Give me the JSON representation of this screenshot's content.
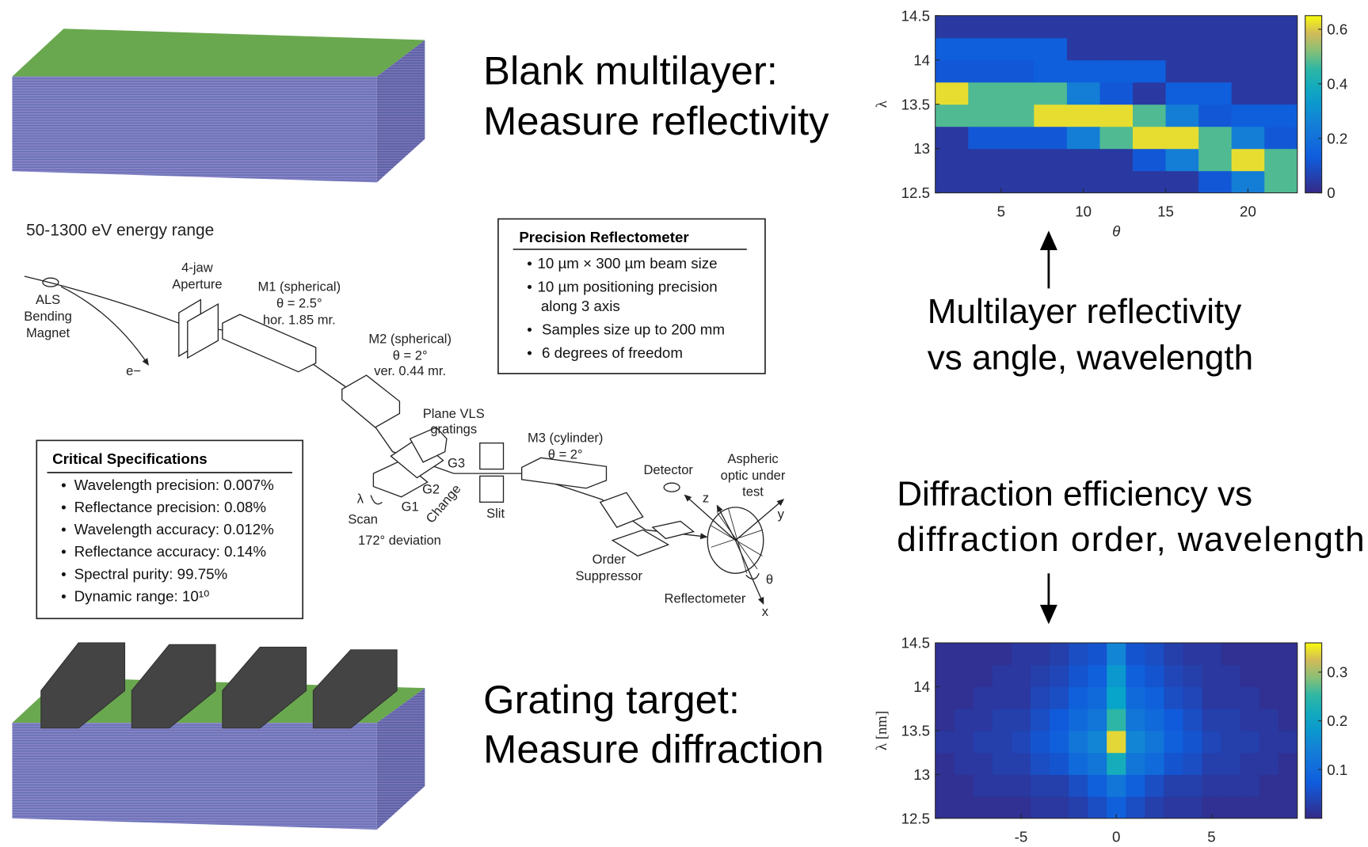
{
  "captions": {
    "blank": [
      "Blank multilayer:",
      "Measure reflectivity"
    ],
    "grating": [
      "Grating target:",
      "Measure diffraction"
    ],
    "reflectivity": [
      "Multilayer reflectivity",
      "vs angle, wavelength"
    ],
    "diffraction": [
      "Diffraction efficiency vs",
      "diffraction order, wavelength"
    ]
  },
  "beamline": {
    "energy_range": "50-1300 eV energy range",
    "labels": [
      "ALS",
      "Bending",
      "Magnet",
      "e−",
      "4-jaw",
      "Aperture",
      "M1 (spherical)",
      "θ = 2.5°",
      "hor. 1.85 mr.",
      "M2 (spherical)",
      "θ = 2°",
      "ver. 0.44 mr.",
      "Plane VLS",
      "gratings",
      "G3",
      "G2",
      "G1",
      "λ",
      "Scan",
      "Change",
      "Slit",
      "172° deviation",
      "M3 (cylinder)",
      "θ = 2°",
      "Detector",
      "Aspheric",
      "optic under",
      "test",
      "z",
      "y",
      "Order",
      "Suppressor",
      "θ",
      "Reflectometer",
      "x"
    ]
  },
  "precision_box": {
    "title": "Precision Reflectometer",
    "items": [
      "10 µm × 300 µm beam size",
      [
        "10 µm positioning precision",
        "along 3 axis"
      ],
      "Samples size up to 200 mm",
      "6 degrees of freedom"
    ]
  },
  "specs_box": {
    "title": "Critical Specifications",
    "items": [
      "Wavelength precision: 0.007%",
      "Reflectance precision: 0.08%",
      "Wavelength accuracy: 0.012%",
      "Reflectance accuracy: 0.14%",
      "Spectral purity: 99.75%",
      "Dynamic range: 10¹⁰"
    ]
  },
  "chart_data": [
    {
      "type": "heatmap",
      "xlabel": "θ",
      "ylabel": "λ",
      "x": [
        2,
        4,
        6,
        8,
        10,
        12,
        14,
        16,
        18,
        20,
        22
      ],
      "y": [
        12.625,
        12.875,
        13.125,
        13.375,
        13.625,
        13.875,
        14.125,
        14.375
      ],
      "z": [
        [
          0.04,
          0.04,
          0.04,
          0.04,
          0.04,
          0.04,
          0.04,
          0.04,
          0.12,
          0.25,
          0.48
        ],
        [
          0.04,
          0.04,
          0.04,
          0.04,
          0.04,
          0.04,
          0.12,
          0.25,
          0.48,
          0.62,
          0.48
        ],
        [
          0.04,
          0.12,
          0.12,
          0.12,
          0.25,
          0.48,
          0.62,
          0.62,
          0.48,
          0.25,
          0.12
        ],
        [
          0.48,
          0.48,
          0.48,
          0.62,
          0.62,
          0.62,
          0.48,
          0.25,
          0.12,
          0.14,
          0.14
        ],
        [
          0.62,
          0.48,
          0.48,
          0.48,
          0.25,
          0.12,
          0.04,
          0.14,
          0.14,
          0.04,
          0.04
        ],
        [
          0.12,
          0.12,
          0.12,
          0.14,
          0.14,
          0.14,
          0.14,
          0.04,
          0.04,
          0.04,
          0.04
        ],
        [
          0.14,
          0.14,
          0.14,
          0.14,
          0.04,
          0.04,
          0.04,
          0.04,
          0.04,
          0.04,
          0.04
        ],
        [
          0.04,
          0.04,
          0.04,
          0.04,
          0.04,
          0.04,
          0.04,
          0.04,
          0.04,
          0.04,
          0.04
        ]
      ],
      "xlim": [
        1,
        23
      ],
      "ylim": [
        12.5,
        14.5
      ],
      "clim": [
        0,
        0.65
      ],
      "xticks": [
        5,
        10,
        15,
        20
      ],
      "yticks": [
        12.5,
        13,
        13.5,
        14,
        14.5
      ],
      "cticks": [
        0,
        0.2,
        0.4,
        0.6
      ]
    },
    {
      "type": "heatmap",
      "ylabel": "λ [nm]",
      "x": [
        -9,
        -8,
        -7,
        -6,
        -5,
        -4,
        -3,
        -2,
        -1,
        0,
        1,
        2,
        3,
        4,
        5,
        6,
        7,
        8,
        9
      ],
      "y": [
        12.625,
        12.875,
        13.125,
        13.375,
        13.625,
        13.875,
        14.125,
        14.375
      ],
      "z": [
        [
          0.01,
          0.01,
          0.01,
          0.01,
          0.01,
          0.02,
          0.02,
          0.03,
          0.05,
          0.08,
          0.05,
          0.03,
          0.02,
          0.02,
          0.01,
          0.01,
          0.01,
          0.01,
          0.01
        ],
        [
          0.01,
          0.01,
          0.02,
          0.02,
          0.02,
          0.03,
          0.03,
          0.05,
          0.08,
          0.12,
          0.08,
          0.05,
          0.03,
          0.03,
          0.02,
          0.02,
          0.02,
          0.01,
          0.01
        ],
        [
          0.01,
          0.02,
          0.02,
          0.03,
          0.03,
          0.05,
          0.06,
          0.1,
          0.12,
          0.22,
          0.12,
          0.1,
          0.06,
          0.05,
          0.03,
          0.03,
          0.02,
          0.02,
          0.01
        ],
        [
          0.02,
          0.02,
          0.03,
          0.03,
          0.04,
          0.06,
          0.08,
          0.12,
          0.15,
          0.34,
          0.15,
          0.12,
          0.08,
          0.06,
          0.04,
          0.03,
          0.03,
          0.02,
          0.02
        ],
        [
          0.01,
          0.02,
          0.02,
          0.03,
          0.03,
          0.05,
          0.07,
          0.1,
          0.12,
          0.25,
          0.12,
          0.1,
          0.07,
          0.05,
          0.03,
          0.03,
          0.02,
          0.02,
          0.01
        ],
        [
          0.01,
          0.01,
          0.02,
          0.02,
          0.02,
          0.04,
          0.05,
          0.08,
          0.1,
          0.2,
          0.1,
          0.08,
          0.05,
          0.04,
          0.02,
          0.02,
          0.02,
          0.01,
          0.01
        ],
        [
          0.01,
          0.01,
          0.01,
          0.02,
          0.02,
          0.03,
          0.04,
          0.06,
          0.08,
          0.18,
          0.08,
          0.06,
          0.04,
          0.03,
          0.02,
          0.02,
          0.01,
          0.01,
          0.01
        ],
        [
          0.01,
          0.01,
          0.01,
          0.01,
          0.02,
          0.02,
          0.03,
          0.05,
          0.06,
          0.15,
          0.06,
          0.05,
          0.03,
          0.02,
          0.02,
          0.01,
          0.01,
          0.01,
          0.01
        ]
      ],
      "xlim": [
        -9.5,
        9.5
      ],
      "ylim": [
        12.5,
        14.5
      ],
      "clim": [
        0,
        0.36
      ],
      "xticks": [
        -5,
        0,
        5
      ],
      "yticks": [
        12.5,
        13,
        13.5,
        14,
        14.5
      ],
      "cticks": [
        0.1,
        0.2,
        0.3
      ]
    }
  ]
}
